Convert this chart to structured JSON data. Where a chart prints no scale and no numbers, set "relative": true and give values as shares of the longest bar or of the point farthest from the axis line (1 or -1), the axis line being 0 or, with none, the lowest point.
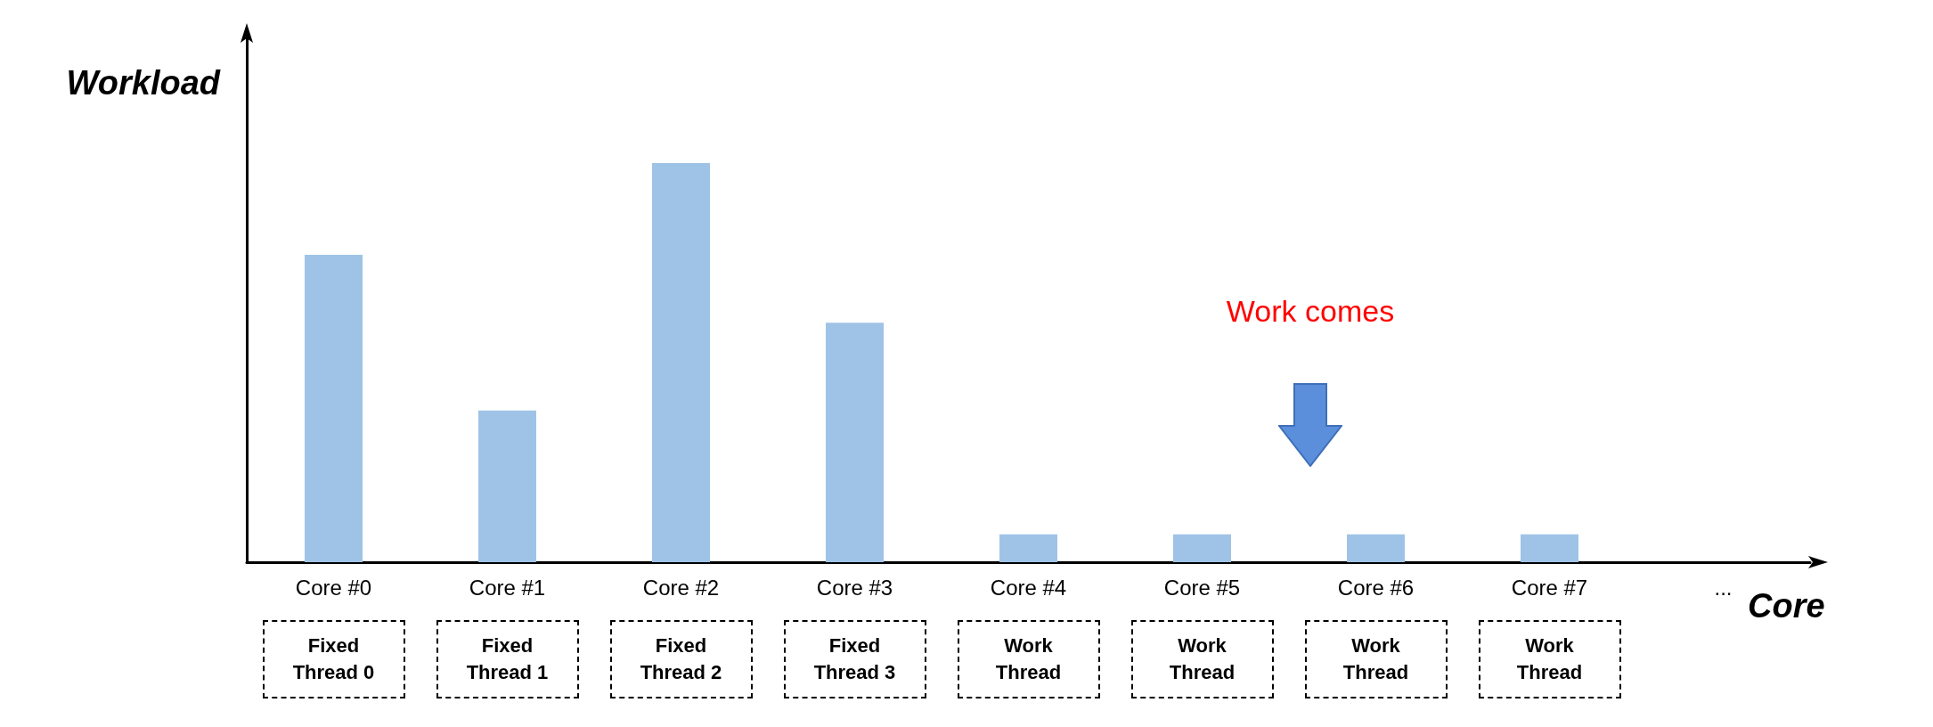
{
  "chart_data": {
    "type": "bar",
    "xlabel": "Core",
    "ylabel": "Workload",
    "relative": true,
    "color": "#9fc3e7",
    "categories": [
      "Core #0",
      "Core #1",
      "Core #2",
      "Core #3",
      "Core #4",
      "Core #5",
      "Core #6",
      "Core #7",
      "..."
    ],
    "values": [
      0.77,
      0.38,
      1,
      0.6,
      0.07,
      0.07,
      0.07,
      0.07,
      null
    ],
    "annotations": [
      "Fixed\nThread 0",
      "Fixed\nThread 1",
      "Fixed\nThread 2",
      "Fixed\nThread 3",
      "Work\nThread",
      "Work\nThread",
      "Work\nThread",
      "Work\nThread",
      "Work comes"
    ]
  }
}
